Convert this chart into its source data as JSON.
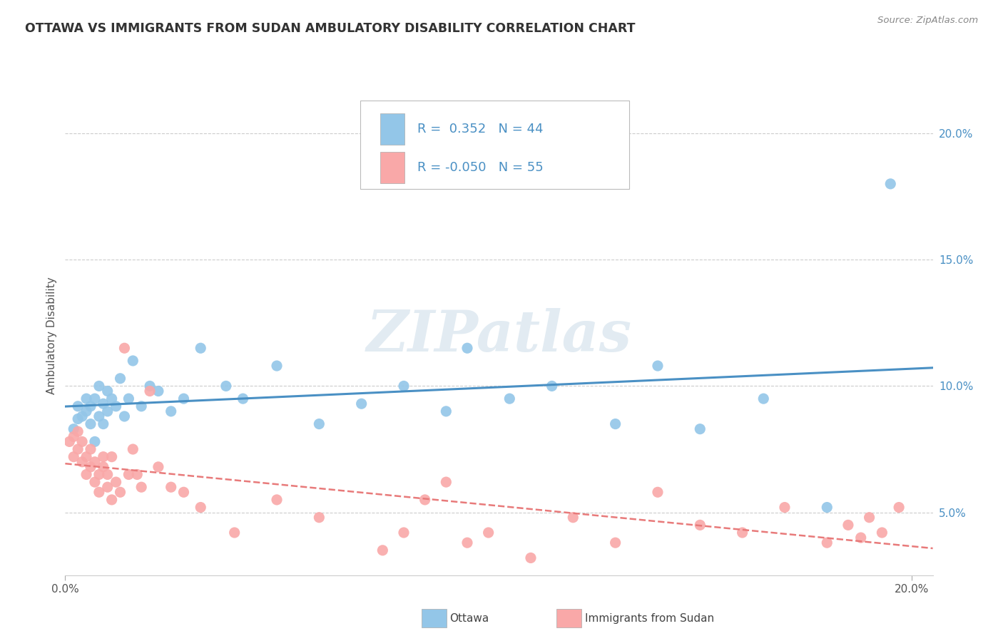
{
  "title": "OTTAWA VS IMMIGRANTS FROM SUDAN AMBULATORY DISABILITY CORRELATION CHART",
  "source": "Source: ZipAtlas.com",
  "ylabel": "Ambulatory Disability",
  "watermark": "ZIPatlas",
  "ottawa_R": 0.352,
  "ottawa_N": 44,
  "sudan_R": -0.05,
  "sudan_N": 55,
  "xmin": 0.0,
  "xmax": 0.205,
  "ymin": 0.025,
  "ymax": 0.215,
  "ottawa_color": "#93c6e8",
  "sudan_color": "#f9a8a8",
  "ottawa_line_color": "#4a90c4",
  "sudan_line_color": "#e87a7a",
  "right_yticks": [
    0.05,
    0.1,
    0.15,
    0.2
  ],
  "right_ytick_labels": [
    "5.0%",
    "10.0%",
    "15.0%",
    "20.0%"
  ],
  "ottawa_scatter_x": [
    0.002,
    0.003,
    0.003,
    0.004,
    0.005,
    0.005,
    0.006,
    0.006,
    0.007,
    0.007,
    0.008,
    0.008,
    0.009,
    0.009,
    0.01,
    0.01,
    0.011,
    0.012,
    0.013,
    0.014,
    0.015,
    0.016,
    0.018,
    0.02,
    0.022,
    0.025,
    0.028,
    0.032,
    0.038,
    0.042,
    0.05,
    0.06,
    0.07,
    0.08,
    0.09,
    0.095,
    0.105,
    0.115,
    0.13,
    0.14,
    0.15,
    0.165,
    0.18,
    0.195
  ],
  "ottawa_scatter_y": [
    0.083,
    0.087,
    0.092,
    0.088,
    0.09,
    0.095,
    0.085,
    0.092,
    0.078,
    0.095,
    0.088,
    0.1,
    0.085,
    0.093,
    0.09,
    0.098,
    0.095,
    0.092,
    0.103,
    0.088,
    0.095,
    0.11,
    0.092,
    0.1,
    0.098,
    0.09,
    0.095,
    0.115,
    0.1,
    0.095,
    0.108,
    0.085,
    0.093,
    0.1,
    0.09,
    0.115,
    0.095,
    0.1,
    0.085,
    0.108,
    0.083,
    0.095,
    0.052,
    0.18
  ],
  "sudan_scatter_x": [
    0.001,
    0.002,
    0.002,
    0.003,
    0.003,
    0.004,
    0.004,
    0.005,
    0.005,
    0.006,
    0.006,
    0.007,
    0.007,
    0.008,
    0.008,
    0.009,
    0.009,
    0.01,
    0.01,
    0.011,
    0.011,
    0.012,
    0.013,
    0.014,
    0.015,
    0.016,
    0.017,
    0.018,
    0.02,
    0.022,
    0.025,
    0.028,
    0.032,
    0.04,
    0.05,
    0.06,
    0.075,
    0.08,
    0.085,
    0.09,
    0.095,
    0.1,
    0.11,
    0.12,
    0.13,
    0.14,
    0.15,
    0.16,
    0.17,
    0.18,
    0.185,
    0.188,
    0.19,
    0.193,
    0.197
  ],
  "sudan_scatter_y": [
    0.078,
    0.072,
    0.08,
    0.075,
    0.082,
    0.07,
    0.078,
    0.065,
    0.072,
    0.068,
    0.075,
    0.062,
    0.07,
    0.058,
    0.065,
    0.072,
    0.068,
    0.06,
    0.065,
    0.055,
    0.072,
    0.062,
    0.058,
    0.115,
    0.065,
    0.075,
    0.065,
    0.06,
    0.098,
    0.068,
    0.06,
    0.058,
    0.052,
    0.042,
    0.055,
    0.048,
    0.035,
    0.042,
    0.055,
    0.062,
    0.038,
    0.042,
    0.032,
    0.048,
    0.038,
    0.058,
    0.045,
    0.042,
    0.052,
    0.038,
    0.045,
    0.04,
    0.048,
    0.042,
    0.052
  ]
}
